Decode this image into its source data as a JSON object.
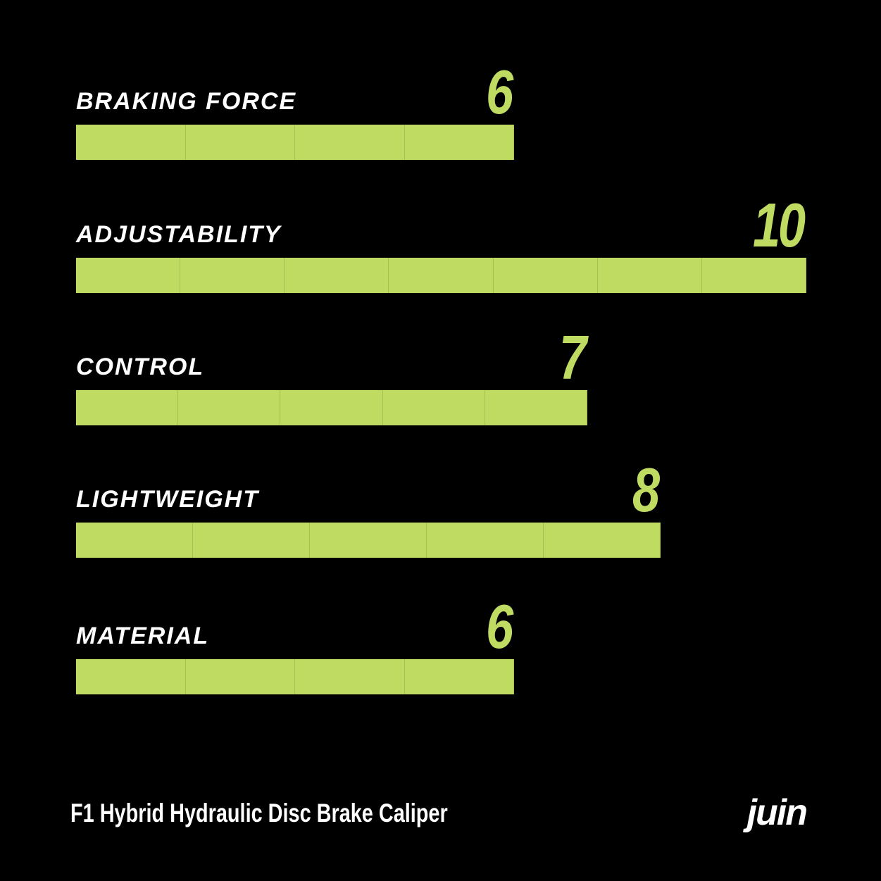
{
  "chart_data": {
    "type": "bar",
    "orientation": "horizontal",
    "categories": [
      "BRAKING FORCE",
      "ADJUSTABILITY",
      "CONTROL",
      "LIGHTWEIGHT",
      "MATERIAL"
    ],
    "values": [
      6,
      10,
      7,
      8,
      6
    ],
    "xlim": [
      0,
      10
    ],
    "grid": false,
    "title": "",
    "xlabel": "",
    "ylabel": ""
  },
  "footer": {
    "product_title": "F1 Hybrid Hydraulic Disc Brake Caliper",
    "brand_logo": "juin"
  },
  "colors": {
    "background": "#000000",
    "bar": "#bfdb62",
    "score": "#bfdb62",
    "label": "#ffffff"
  }
}
